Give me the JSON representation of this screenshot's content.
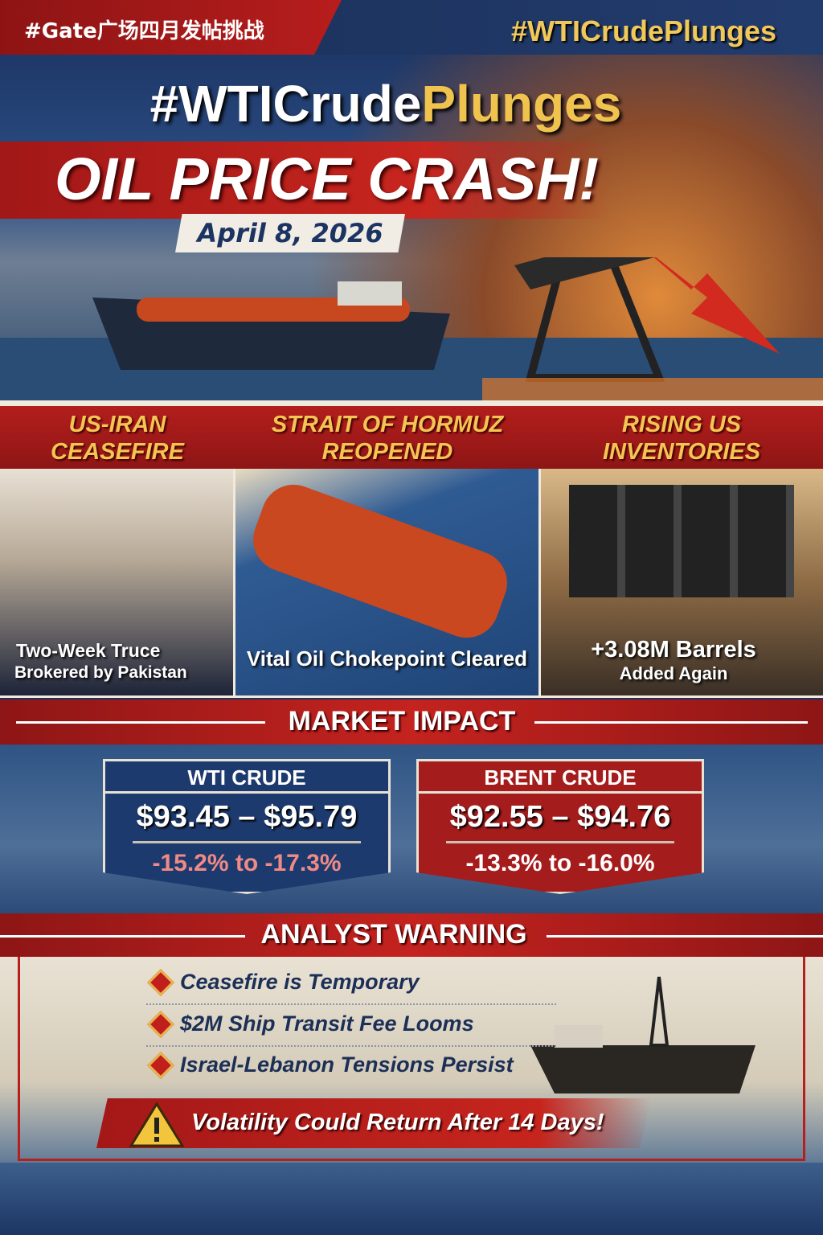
{
  "header": {
    "left_tag": "#Gate广场四月发帖挑战",
    "right_tag": "#WTICrudePlunges"
  },
  "hero": {
    "hashtag_main": "#WTICrude",
    "hashtag_accent": "Plunges",
    "headline": "OIL PRICE CRASH!",
    "date": "April 8, 2026"
  },
  "panels": [
    {
      "title_line1": "US-IRAN",
      "title_line2": "CEASEFIRE",
      "caption_line1": "Two-Week Truce",
      "caption_line2": "Brokered by Pakistan"
    },
    {
      "title_line1": "STRAIT OF HORMUZ",
      "title_line2": "REOPENED",
      "caption_line1": "Vital Oil Chokepoint Cleared"
    },
    {
      "title_line1": "RISING US",
      "title_line2": "INVENTORIES",
      "caption_line1": "+3.08M Barrels",
      "caption_line2": "Added Again"
    }
  ],
  "market_impact": {
    "title": "MARKET IMPACT",
    "cards": [
      {
        "name": "WTI CRUDE",
        "price_range": "$93.45 – $95.79",
        "change": "-15.2% to -17.3%",
        "color": "#1d3a6e"
      },
      {
        "name": "BRENT CRUDE",
        "price_range": "$92.55 – $94.76",
        "change": "-13.3% to -16.0%",
        "color": "#a51c1c"
      }
    ]
  },
  "analyst_warning": {
    "title": "ANALYST WARNING",
    "bullets": [
      "Ceasefire is Temporary",
      "$2M Ship Transit Fee Looms",
      "Israel-Lebanon Tensions Persist"
    ],
    "alert": "Volatility Could Return After 14 Days!"
  },
  "colors": {
    "red": "#b71e1c",
    "gold": "#f1c553",
    "navy": "#1c3461"
  }
}
